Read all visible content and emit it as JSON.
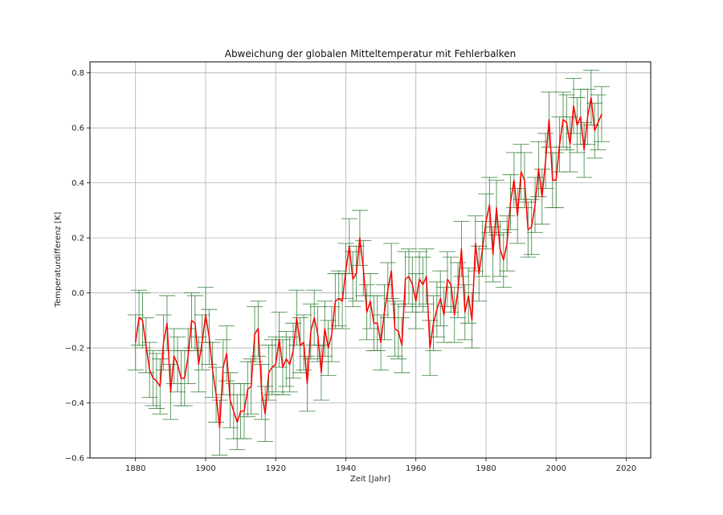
{
  "colors": {
    "line": "#ff0000",
    "errorbar": "#2e7d32",
    "grid": "#b0b0b0",
    "axes": "#000000"
  },
  "chart_data": {
    "type": "line",
    "title": "Abweichung der globalen Mitteltemperatur mit Fehlerbalken",
    "xlabel": "Zeit [Jahr]",
    "ylabel": "Temperaturdifferenz [K]",
    "xlim": [
      1867,
      2027
    ],
    "ylim": [
      -0.6,
      0.84
    ],
    "xticks": [
      1880,
      1900,
      1920,
      1940,
      1960,
      1980,
      2000,
      2020
    ],
    "yticks": [
      -0.6,
      -0.4,
      -0.2,
      0.0,
      0.2,
      0.4,
      0.6,
      0.8
    ],
    "xtick_labels": [
      "1880",
      "1900",
      "1920",
      "1940",
      "1960",
      "1980",
      "2000",
      "2020"
    ],
    "ytick_labels": [
      "−0.6",
      "−0.4",
      "−0.2",
      "0.0",
      "0.2",
      "0.4",
      "0.6",
      "0.8"
    ],
    "grid": true,
    "series": [
      {
        "type": "line-errorbar",
        "x": [
          1880,
          1881,
          1882,
          1883,
          1884,
          1885,
          1886,
          1887,
          1888,
          1889,
          1890,
          1891,
          1892,
          1893,
          1894,
          1895,
          1896,
          1897,
          1898,
          1899,
          1900,
          1901,
          1902,
          1903,
          1904,
          1905,
          1906,
          1907,
          1908,
          1909,
          1910,
          1911,
          1912,
          1913,
          1914,
          1915,
          1916,
          1917,
          1918,
          1919,
          1920,
          1921,
          1922,
          1923,
          1924,
          1925,
          1926,
          1927,
          1928,
          1929,
          1930,
          1931,
          1932,
          1933,
          1934,
          1935,
          1936,
          1937,
          1938,
          1939,
          1940,
          1941,
          1942,
          1943,
          1944,
          1945,
          1946,
          1947,
          1948,
          1949,
          1950,
          1951,
          1952,
          1953,
          1954,
          1955,
          1956,
          1957,
          1958,
          1959,
          1960,
          1961,
          1962,
          1963,
          1964,
          1965,
          1966,
          1967,
          1968,
          1969,
          1970,
          1971,
          1972,
          1973,
          1974,
          1975,
          1976,
          1977,
          1978,
          1979,
          1980,
          1981,
          1982,
          1983,
          1984,
          1985,
          1986,
          1987,
          1988,
          1989,
          1990,
          1991,
          1992,
          1993,
          1994,
          1995,
          1996,
          1997,
          1998,
          1999,
          2000,
          2001,
          2002,
          2003,
          2004,
          2005,
          2006,
          2007,
          2008,
          2009,
          2010,
          2011,
          2012,
          2013
        ],
        "y": [
          -0.18,
          -0.09,
          -0.1,
          -0.19,
          -0.28,
          -0.31,
          -0.32,
          -0.34,
          -0.18,
          -0.11,
          -0.36,
          -0.23,
          -0.26,
          -0.31,
          -0.31,
          -0.23,
          -0.1,
          -0.11,
          -0.26,
          -0.18,
          -0.08,
          -0.16,
          -0.28,
          -0.37,
          -0.49,
          -0.27,
          -0.22,
          -0.39,
          -0.43,
          -0.47,
          -0.43,
          -0.43,
          -0.35,
          -0.34,
          -0.15,
          -0.13,
          -0.36,
          -0.44,
          -0.29,
          -0.27,
          -0.26,
          -0.17,
          -0.27,
          -0.24,
          -0.26,
          -0.21,
          -0.09,
          -0.19,
          -0.18,
          -0.33,
          -0.14,
          -0.09,
          -0.15,
          -0.29,
          -0.13,
          -0.2,
          -0.15,
          -0.03,
          -0.02,
          -0.03,
          0.08,
          0.17,
          0.05,
          0.07,
          0.2,
          0.09,
          -0.07,
          -0.03,
          -0.11,
          -0.11,
          -0.18,
          -0.07,
          0.01,
          0.08,
          -0.13,
          -0.14,
          -0.19,
          0.05,
          0.06,
          0.03,
          -0.03,
          0.05,
          0.03,
          0.06,
          -0.2,
          -0.11,
          -0.06,
          -0.02,
          -0.08,
          0.05,
          0.03,
          -0.08,
          0.01,
          0.16,
          -0.07,
          -0.01,
          -0.1,
          0.18,
          0.07,
          0.16,
          0.26,
          0.32,
          0.14,
          0.31,
          0.16,
          0.12,
          0.18,
          0.33,
          0.41,
          0.28,
          0.44,
          0.41,
          0.23,
          0.24,
          0.32,
          0.45,
          0.35,
          0.48,
          0.63,
          0.41,
          0.41,
          0.54,
          0.63,
          0.62,
          0.54,
          0.68,
          0.61,
          0.64,
          0.52,
          0.64,
          0.71,
          0.59,
          0.62,
          0.65
        ],
        "yerr": 0.1
      }
    ]
  }
}
